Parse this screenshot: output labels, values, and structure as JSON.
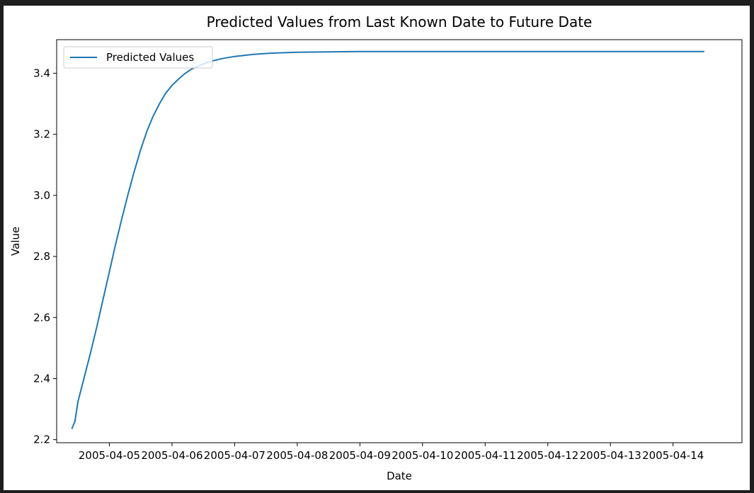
{
  "chart_data": {
    "type": "line",
    "title": "Predicted Values from Last Known Date to Future Date",
    "xlabel": "Date",
    "ylabel": "Value",
    "legend_position": "upper left",
    "grid": false,
    "colors": {
      "series": "#1f77b4",
      "frame": "#000000",
      "background": "#ffffff"
    },
    "xlim": [
      "2005-04-04T03:48",
      "2005-04-15T02:24"
    ],
    "ylim": [
      2.19,
      3.51
    ],
    "x_ticks": [
      "2005-04-05",
      "2005-04-06",
      "2005-04-07",
      "2005-04-08",
      "2005-04-09",
      "2005-04-10",
      "2005-04-11",
      "2005-04-12",
      "2005-04-13",
      "2005-04-14"
    ],
    "y_ticks": [
      2.2,
      2.4,
      2.6,
      2.8,
      3.0,
      3.2,
      3.4
    ],
    "y_tick_labels": [
      "2.2",
      "2.4",
      "2.6",
      "2.8",
      "3.0",
      "3.2",
      "3.4"
    ],
    "series": [
      {
        "name": "Predicted Values",
        "x": [
          "2005-04-04T09:36",
          "2005-04-04T10:48",
          "2005-04-04T12:00",
          "2005-04-04T14:24",
          "2005-04-04T16:48",
          "2005-04-04T19:12",
          "2005-04-04T21:36",
          "2005-04-05T00:00",
          "2005-04-05T02:24",
          "2005-04-05T04:48",
          "2005-04-05T07:12",
          "2005-04-05T09:36",
          "2005-04-05T12:00",
          "2005-04-05T14:24",
          "2005-04-05T16:48",
          "2005-04-05T19:12",
          "2005-04-05T21:36",
          "2005-04-06T00:00",
          "2005-04-06T02:24",
          "2005-04-06T04:48",
          "2005-04-06T07:12",
          "2005-04-06T09:36",
          "2005-04-06T14:24",
          "2005-04-06T19:12",
          "2005-04-07T00:00",
          "2005-04-07T07:12",
          "2005-04-07T14:24",
          "2005-04-08T00:00",
          "2005-04-08T12:00",
          "2005-04-09T00:00",
          "2005-04-10T00:00",
          "2005-04-11T00:00",
          "2005-04-12T00:00",
          "2005-04-13T00:00",
          "2005-04-14T00:00",
          "2005-04-14T12:00"
        ],
        "values": [
          2.235,
          2.26,
          2.325,
          2.405,
          2.485,
          2.57,
          2.66,
          2.75,
          2.84,
          2.925,
          3.005,
          3.08,
          3.15,
          3.21,
          3.26,
          3.3,
          3.335,
          3.36,
          3.38,
          3.398,
          3.412,
          3.422,
          3.438,
          3.448,
          3.455,
          3.462,
          3.466,
          3.469,
          3.47,
          3.471,
          3.471,
          3.471,
          3.471,
          3.471,
          3.471,
          3.471
        ]
      }
    ]
  }
}
